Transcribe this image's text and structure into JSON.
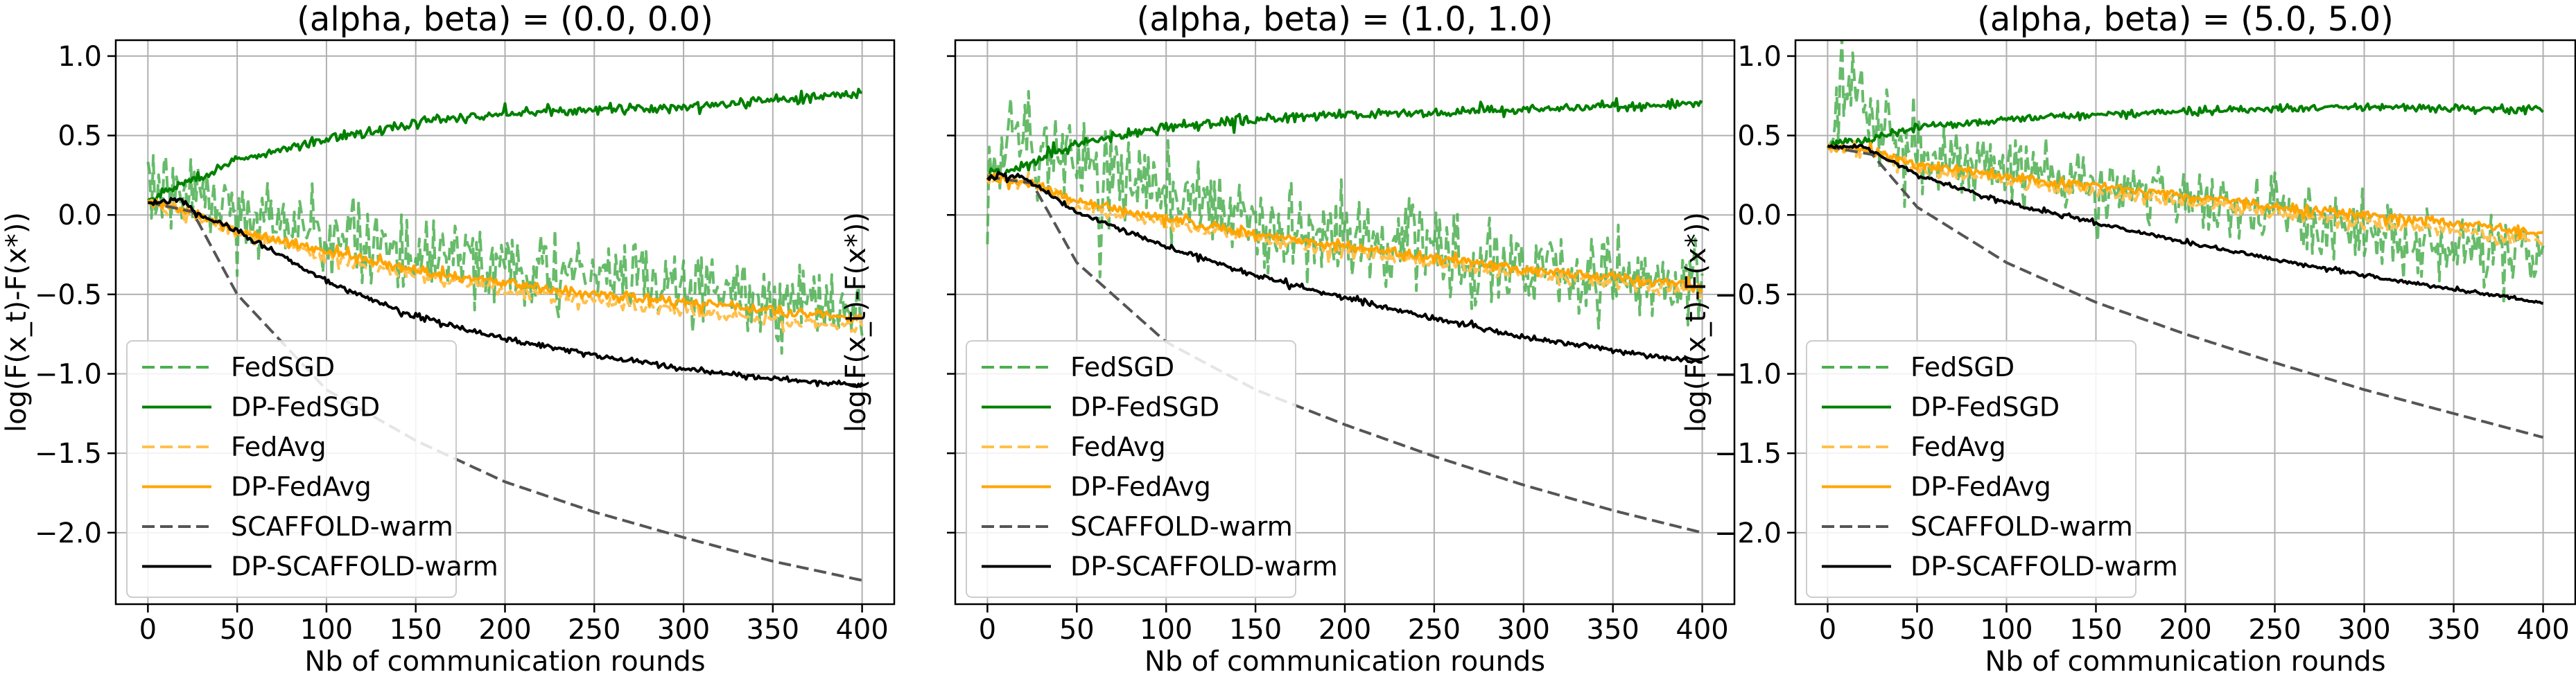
{
  "chart_data": [
    {
      "type": "line",
      "title": "(alpha, beta) = (0.0, 0.0)",
      "xlabel": "Nb of communication rounds",
      "ylabel": "log(F(x_t)-F(x*))",
      "xlim": [
        -18,
        418
      ],
      "ylim": [
        -2.45,
        1.1
      ],
      "xticks": [
        0,
        50,
        100,
        150,
        200,
        250,
        300,
        350,
        400
      ],
      "xtick_labels": [
        "0",
        "50",
        "100",
        "150",
        "200",
        "250",
        "300",
        "350",
        "400"
      ],
      "yticks": [
        1.0,
        0.5,
        0.0,
        -0.5,
        -1.0,
        -1.5,
        -2.0
      ],
      "ytick_labels": [
        "1.0",
        "0.5",
        "0.0",
        "−0.5",
        "−1.0",
        "−1.5",
        "−2.0"
      ],
      "grid": true,
      "legend": "lower-left",
      "series": [
        {
          "name": "FedSGD",
          "color": "#4caf50",
          "dash": "dashed",
          "noise": 0.11,
          "x": [
            0,
            25,
            50,
            100,
            150,
            200,
            250,
            300,
            350,
            400
          ],
          "y": [
            0.2,
            0.15,
            0.02,
            -0.12,
            -0.25,
            -0.32,
            -0.38,
            -0.45,
            -0.52,
            -0.55
          ]
        },
        {
          "name": "DP-FedSGD",
          "color": "#008000",
          "dash": "solid",
          "noise": 0.015,
          "x": [
            0,
            25,
            50,
            100,
            150,
            200,
            250,
            300,
            350,
            400
          ],
          "y": [
            0.1,
            0.22,
            0.35,
            0.48,
            0.58,
            0.64,
            0.66,
            0.68,
            0.72,
            0.77
          ]
        },
        {
          "name": "FedAvg",
          "color": "#ffc04d",
          "dash": "dashed",
          "noise": 0.02,
          "x": [
            0,
            25,
            50,
            100,
            150,
            200,
            250,
            300,
            350,
            400
          ],
          "y": [
            0.08,
            0.0,
            -0.12,
            -0.26,
            -0.38,
            -0.47,
            -0.54,
            -0.6,
            -0.66,
            -0.7
          ]
        },
        {
          "name": "DP-FedAvg",
          "color": "#ffa500",
          "dash": "solid",
          "noise": 0.015,
          "x": [
            0,
            25,
            50,
            100,
            150,
            200,
            250,
            300,
            350,
            400
          ],
          "y": [
            0.08,
            0.02,
            -0.1,
            -0.23,
            -0.35,
            -0.43,
            -0.5,
            -0.55,
            -0.6,
            -0.65
          ]
        },
        {
          "name": "SCAFFOLD-warm",
          "color": "#555555",
          "dash": "dashed",
          "noise": 0,
          "x": [
            0,
            25,
            50,
            100,
            150,
            200,
            250,
            300,
            350,
            400
          ],
          "y": [
            0.08,
            0.02,
            -0.5,
            -1.1,
            -1.42,
            -1.68,
            -1.87,
            -2.03,
            -2.18,
            -2.3
          ]
        },
        {
          "name": "DP-SCAFFOLD-warm",
          "color": "#000000",
          "dash": "solid",
          "noise": 0.008,
          "x": [
            0,
            20,
            25,
            50,
            100,
            150,
            200,
            250,
            300,
            350,
            400
          ],
          "y": [
            0.08,
            0.1,
            0.02,
            -0.1,
            -0.42,
            -0.64,
            -0.78,
            -0.88,
            -0.97,
            -1.03,
            -1.07
          ]
        }
      ]
    },
    {
      "type": "line",
      "title": "(alpha, beta) = (1.0, 1.0)",
      "xlabel": "Nb of communication rounds",
      "ylabel": "log(F(x_t)-F(x*))",
      "xlim": [
        -18,
        418
      ],
      "ylim": [
        -2.45,
        1.1
      ],
      "xticks": [
        0,
        50,
        100,
        150,
        200,
        250,
        300,
        350,
        400
      ],
      "xtick_labels": [
        "0",
        "50",
        "100",
        "150",
        "200",
        "250",
        "300",
        "350",
        "400"
      ],
      "yticks": [
        1.0,
        0.5,
        0.0,
        -0.5,
        -1.0,
        -1.5,
        -2.0
      ],
      "ytick_labels": [
        "1.0",
        "0.5",
        "0.0",
        "−0.5",
        "−1.0",
        "−1.5",
        "−2.0"
      ],
      "grid": true,
      "legend": "lower-left",
      "series": [
        {
          "name": "FedSGD",
          "color": "#4caf50",
          "dash": "dashed",
          "noise": 0.14,
          "x": [
            0,
            15,
            25,
            50,
            100,
            150,
            200,
            250,
            300,
            350,
            400
          ],
          "y": [
            0.25,
            0.6,
            0.45,
            0.3,
            0.12,
            -0.05,
            -0.15,
            -0.25,
            -0.33,
            -0.42,
            -0.45
          ]
        },
        {
          "name": "DP-FedSGD",
          "color": "#008000",
          "dash": "solid",
          "noise": 0.015,
          "x": [
            0,
            25,
            50,
            100,
            150,
            200,
            250,
            300,
            350,
            400
          ],
          "y": [
            0.25,
            0.33,
            0.45,
            0.55,
            0.6,
            0.63,
            0.65,
            0.66,
            0.68,
            0.7
          ]
        },
        {
          "name": "FedAvg",
          "color": "#ffc04d",
          "dash": "dashed",
          "noise": 0.02,
          "x": [
            0,
            25,
            50,
            100,
            150,
            200,
            250,
            300,
            350,
            400
          ],
          "y": [
            0.24,
            0.2,
            0.05,
            -0.05,
            -0.15,
            -0.22,
            -0.3,
            -0.37,
            -0.43,
            -0.48
          ]
        },
        {
          "name": "DP-FedAvg",
          "color": "#ffa500",
          "dash": "solid",
          "noise": 0.015,
          "x": [
            0,
            25,
            50,
            100,
            150,
            200,
            250,
            300,
            350,
            400
          ],
          "y": [
            0.24,
            0.2,
            0.08,
            -0.02,
            -0.12,
            -0.2,
            -0.27,
            -0.34,
            -0.4,
            -0.45
          ]
        },
        {
          "name": "SCAFFOLD-warm",
          "color": "#555555",
          "dash": "dashed",
          "noise": 0,
          "x": [
            0,
            25,
            50,
            100,
            150,
            200,
            250,
            300,
            350,
            400
          ],
          "y": [
            0.24,
            0.2,
            -0.3,
            -0.8,
            -1.1,
            -1.32,
            -1.52,
            -1.7,
            -1.86,
            -2.0
          ]
        },
        {
          "name": "DP-SCAFFOLD-warm",
          "color": "#000000",
          "dash": "solid",
          "noise": 0.008,
          "x": [
            0,
            20,
            25,
            50,
            100,
            150,
            200,
            250,
            300,
            350,
            400
          ],
          "y": [
            0.24,
            0.24,
            0.2,
            0.02,
            -0.2,
            -0.38,
            -0.52,
            -0.65,
            -0.77,
            -0.85,
            -0.93
          ]
        }
      ]
    },
    {
      "type": "line",
      "title": "(alpha, beta) = (5.0, 5.0)",
      "xlabel": "Nb of communication rounds",
      "ylabel": "log(F(x_t)-F(x*))",
      "xlim": [
        -18,
        418
      ],
      "ylim": [
        -2.45,
        1.1
      ],
      "xticks": [
        0,
        50,
        100,
        150,
        200,
        250,
        300,
        350,
        400
      ],
      "xtick_labels": [
        "0",
        "50",
        "100",
        "150",
        "200",
        "250",
        "300",
        "350",
        "400"
      ],
      "yticks": [
        1.0,
        0.5,
        0.0,
        -0.5,
        -1.0,
        -1.5,
        -2.0
      ],
      "ytick_labels": [
        "1.0",
        "0.5",
        "0.0",
        "−0.5",
        "−1.0",
        "−1.5",
        "−2.0"
      ],
      "grid": true,
      "legend": "lower-left",
      "series": [
        {
          "name": "FedSGD",
          "color": "#4caf50",
          "dash": "dashed",
          "noise": 0.1,
          "x": [
            0,
            15,
            25,
            50,
            100,
            150,
            200,
            250,
            300,
            350,
            400
          ],
          "y": [
            0.45,
            0.85,
            0.55,
            0.4,
            0.3,
            0.2,
            0.1,
            0.0,
            -0.1,
            -0.2,
            -0.3
          ]
        },
        {
          "name": "DP-FedSGD",
          "color": "#008000",
          "dash": "solid",
          "noise": 0.012,
          "x": [
            0,
            25,
            50,
            100,
            150,
            200,
            250,
            300,
            350,
            400
          ],
          "y": [
            0.44,
            0.48,
            0.55,
            0.6,
            0.63,
            0.65,
            0.67,
            0.68,
            0.67,
            0.66
          ]
        },
        {
          "name": "FedAvg",
          "color": "#ffc04d",
          "dash": "dashed",
          "noise": 0.02,
          "x": [
            0,
            25,
            50,
            100,
            150,
            200,
            250,
            300,
            350,
            400
          ],
          "y": [
            0.43,
            0.4,
            0.3,
            0.22,
            0.15,
            0.08,
            0.02,
            -0.05,
            -0.1,
            -0.17
          ]
        },
        {
          "name": "DP-FedAvg",
          "color": "#ffa500",
          "dash": "solid",
          "noise": 0.015,
          "x": [
            0,
            25,
            50,
            100,
            150,
            200,
            250,
            300,
            350,
            400
          ],
          "y": [
            0.43,
            0.4,
            0.32,
            0.24,
            0.18,
            0.12,
            0.05,
            0.0,
            -0.05,
            -0.12
          ]
        },
        {
          "name": "SCAFFOLD-warm",
          "color": "#555555",
          "dash": "dashed",
          "noise": 0,
          "x": [
            0,
            25,
            50,
            100,
            150,
            200,
            250,
            300,
            350,
            400
          ],
          "y": [
            0.43,
            0.38,
            0.05,
            -0.3,
            -0.55,
            -0.75,
            -0.93,
            -1.1,
            -1.25,
            -1.4
          ]
        },
        {
          "name": "DP-SCAFFOLD-warm",
          "color": "#000000",
          "dash": "solid",
          "noise": 0.006,
          "x": [
            0,
            20,
            25,
            50,
            100,
            150,
            200,
            250,
            300,
            350,
            400
          ],
          "y": [
            0.43,
            0.43,
            0.4,
            0.25,
            0.08,
            -0.05,
            -0.17,
            -0.28,
            -0.38,
            -0.47,
            -0.55
          ]
        }
      ]
    }
  ]
}
